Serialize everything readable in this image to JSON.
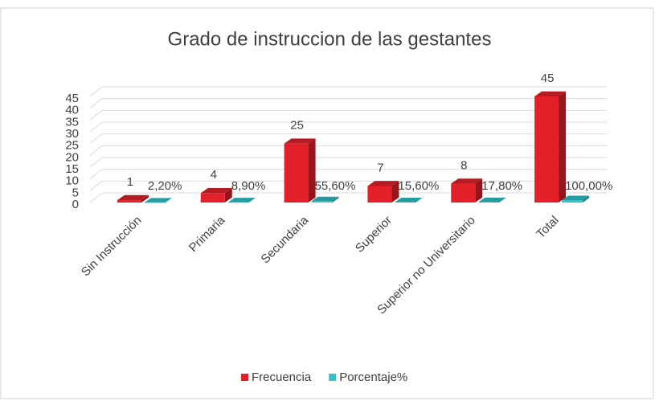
{
  "chart_data": {
    "type": "bar3d",
    "title": "Grado de instruccion de las gestantes",
    "categories": [
      "Sin Instrucción",
      "Primaria",
      "Secundaria",
      "Superior",
      "Superior no Universitario",
      "Total"
    ],
    "series": [
      {
        "name": "Frecuencia",
        "color": "#e3202a",
        "values": [
          1,
          4,
          25,
          7,
          8,
          45
        ]
      },
      {
        "name": "Porcentaje%",
        "color": "#2ec4c8",
        "values": [
          0.022,
          0.089,
          0.556,
          0.156,
          0.178,
          1
        ],
        "value_labels": [
          "2,20%",
          "8,90%",
          "55,60%",
          "15,60%",
          "17,80%",
          "100,00%"
        ]
      }
    ],
    "ylim": [
      0,
      45
    ],
    "yticks": [
      0,
      5,
      10,
      15,
      20,
      25,
      30,
      35,
      40,
      45
    ],
    "grid": true,
    "legend": "bottom"
  }
}
